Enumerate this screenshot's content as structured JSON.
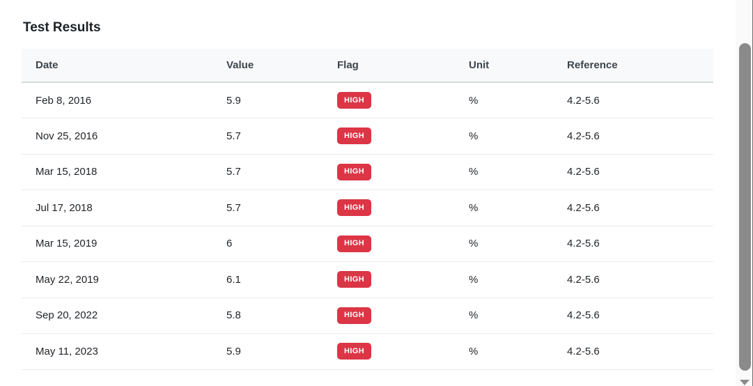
{
  "page": {
    "title": "Test Results"
  },
  "table": {
    "columns": [
      "Date",
      "Value",
      "Flag",
      "Unit",
      "Reference"
    ],
    "rows": [
      {
        "date": "Feb 8, 2016",
        "value": "5.9",
        "flag": "HIGH",
        "unit": "%",
        "reference": "4.2-5.6"
      },
      {
        "date": "Nov 25, 2016",
        "value": "5.7",
        "flag": "HIGH",
        "unit": "%",
        "reference": "4.2-5.6"
      },
      {
        "date": "Mar 15, 2018",
        "value": "5.7",
        "flag": "HIGH",
        "unit": "%",
        "reference": "4.2-5.6"
      },
      {
        "date": "Jul 17, 2018",
        "value": "5.7",
        "flag": "HIGH",
        "unit": "%",
        "reference": "4.2-5.6"
      },
      {
        "date": "Mar 15, 2019",
        "value": "6",
        "flag": "HIGH",
        "unit": "%",
        "reference": "4.2-5.6"
      },
      {
        "date": "May 22, 2019",
        "value": "6.1",
        "flag": "HIGH",
        "unit": "%",
        "reference": "4.2-5.6"
      },
      {
        "date": "Sep 20, 2022",
        "value": "5.8",
        "flag": "HIGH",
        "unit": "%",
        "reference": "4.2-5.6"
      },
      {
        "date": "May 11, 2023",
        "value": "5.9",
        "flag": "HIGH",
        "unit": "%",
        "reference": "4.2-5.6"
      }
    ]
  },
  "colors": {
    "flag_high_bg": "#dc3545",
    "flag_high_text": "#ffffff",
    "header_bg": "#f8f9fa",
    "scrollbar_thumb": "#8a8a8a"
  }
}
